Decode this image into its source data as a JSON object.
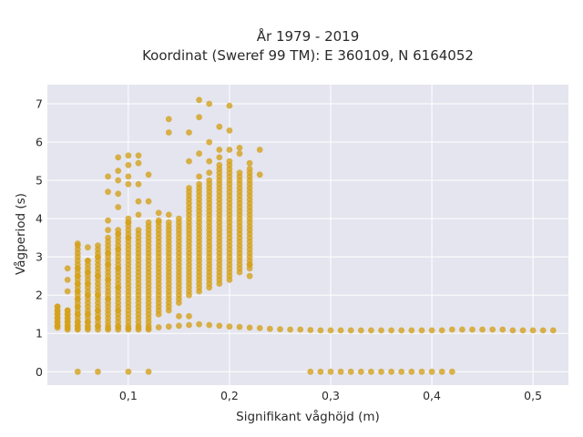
{
  "chart_data": {
    "type": "scatter",
    "title_line1": "År 1979 - 2019",
    "title_line2": "Koordinat (Sweref 99 TM): E 360109, N 6164052",
    "xlabel": "Signifikant våghöjd (m)",
    "ylabel": "Vågperiod (s)",
    "xlim": [
      0.02,
      0.535
    ],
    "ylim": [
      -0.35,
      7.5
    ],
    "x_ticks": [
      0.1,
      0.2,
      0.3,
      0.4,
      0.5
    ],
    "x_tick_labels": [
      "0,1",
      "0,2",
      "0,3",
      "0,4",
      "0,5"
    ],
    "y_ticks": [
      0,
      1,
      2,
      3,
      4,
      5,
      6,
      7
    ],
    "y_tick_labels": [
      "0",
      "1",
      "2",
      "3",
      "4",
      "5",
      "6",
      "7"
    ],
    "grid": true,
    "legend": "none",
    "colors": {
      "marker": "#D4A017",
      "background": "#E5E5EF",
      "grid": "#FFFFFF"
    },
    "columns": [
      {
        "x": 0.03,
        "lo": 1.2,
        "hi": 1.7
      },
      {
        "x": 0.04,
        "lo": 1.1,
        "hi": 1.6
      },
      {
        "x": 0.05,
        "lo": 1.1,
        "hi": 3.3
      },
      {
        "x": 0.06,
        "lo": 1.1,
        "hi": 2.9
      },
      {
        "x": 0.07,
        "lo": 1.1,
        "hi": 3.2
      },
      {
        "x": 0.08,
        "lo": 1.1,
        "hi": 3.5
      },
      {
        "x": 0.09,
        "lo": 1.1,
        "hi": 3.7
      },
      {
        "x": 0.1,
        "lo": 1.1,
        "hi": 3.9
      },
      {
        "x": 0.11,
        "lo": 1.1,
        "hi": 3.7
      },
      {
        "x": 0.12,
        "lo": 1.1,
        "hi": 3.9
      },
      {
        "x": 0.13,
        "lo": 1.5,
        "hi": 3.9
      },
      {
        "x": 0.14,
        "lo": 1.6,
        "hi": 3.9
      },
      {
        "x": 0.15,
        "lo": 1.8,
        "hi": 4.0
      },
      {
        "x": 0.16,
        "lo": 2.0,
        "hi": 4.8
      },
      {
        "x": 0.17,
        "lo": 2.1,
        "hi": 4.8
      },
      {
        "x": 0.18,
        "lo": 2.2,
        "hi": 5.0
      },
      {
        "x": 0.19,
        "lo": 2.3,
        "hi": 5.4
      },
      {
        "x": 0.2,
        "lo": 2.4,
        "hi": 5.4
      },
      {
        "x": 0.21,
        "lo": 2.6,
        "hi": 5.1
      },
      {
        "x": 0.22,
        "lo": 2.7,
        "hi": 5.3
      }
    ],
    "points": [
      [
        0.03,
        1.2
      ],
      [
        0.03,
        1.3
      ],
      [
        0.03,
        1.4
      ],
      [
        0.03,
        1.5
      ],
      [
        0.03,
        1.6
      ],
      [
        0.03,
        1.7
      ],
      [
        0.04,
        1.2
      ],
      [
        0.04,
        1.3
      ],
      [
        0.04,
        1.4
      ],
      [
        0.04,
        1.5
      ],
      [
        0.04,
        1.6
      ],
      [
        0.04,
        2.1
      ],
      [
        0.04,
        2.4
      ],
      [
        0.04,
        2.7
      ],
      [
        0.05,
        1.2
      ],
      [
        0.05,
        1.3
      ],
      [
        0.05,
        1.5
      ],
      [
        0.05,
        1.7
      ],
      [
        0.05,
        1.9
      ],
      [
        0.05,
        2.1
      ],
      [
        0.05,
        2.3
      ],
      [
        0.05,
        2.5
      ],
      [
        0.05,
        2.7
      ],
      [
        0.05,
        3.35
      ],
      [
        0.06,
        1.3
      ],
      [
        0.06,
        1.5
      ],
      [
        0.06,
        2.0
      ],
      [
        0.06,
        2.3
      ],
      [
        0.06,
        2.6
      ],
      [
        0.06,
        2.9
      ],
      [
        0.06,
        3.25
      ],
      [
        0.07,
        1.4
      ],
      [
        0.07,
        1.6
      ],
      [
        0.07,
        2.0
      ],
      [
        0.07,
        2.5
      ],
      [
        0.07,
        3.0
      ],
      [
        0.07,
        3.3
      ],
      [
        0.08,
        1.9
      ],
      [
        0.08,
        2.4
      ],
      [
        0.08,
        2.8
      ],
      [
        0.08,
        3.1
      ],
      [
        0.08,
        3.7
      ],
      [
        0.08,
        3.95
      ],
      [
        0.08,
        4.7
      ],
      [
        0.08,
        5.1
      ],
      [
        0.09,
        1.6
      ],
      [
        0.09,
        2.2
      ],
      [
        0.09,
        2.7
      ],
      [
        0.09,
        3.2
      ],
      [
        0.09,
        3.6
      ],
      [
        0.09,
        4.3
      ],
      [
        0.09,
        4.65
      ],
      [
        0.09,
        5.0
      ],
      [
        0.09,
        5.25
      ],
      [
        0.09,
        5.6
      ],
      [
        0.1,
        3.5
      ],
      [
        0.1,
        3.9
      ],
      [
        0.1,
        4.0
      ],
      [
        0.1,
        4.9
      ],
      [
        0.1,
        5.1
      ],
      [
        0.1,
        5.4
      ],
      [
        0.1,
        5.65
      ],
      [
        0.11,
        4.1
      ],
      [
        0.11,
        4.45
      ],
      [
        0.11,
        4.9
      ],
      [
        0.11,
        5.45
      ],
      [
        0.11,
        5.65
      ],
      [
        0.12,
        4.45
      ],
      [
        0.12,
        5.15
      ],
      [
        0.13,
        3.95
      ],
      [
        0.13,
        4.15
      ],
      [
        0.14,
        4.1
      ],
      [
        0.14,
        6.25
      ],
      [
        0.14,
        6.6
      ],
      [
        0.15,
        1.45
      ],
      [
        0.16,
        1.45
      ],
      [
        0.16,
        5.5
      ],
      [
        0.16,
        6.25
      ],
      [
        0.17,
        4.9
      ],
      [
        0.17,
        5.1
      ],
      [
        0.17,
        5.7
      ],
      [
        0.17,
        6.65
      ],
      [
        0.17,
        7.1
      ],
      [
        0.18,
        5.2
      ],
      [
        0.18,
        5.5
      ],
      [
        0.18,
        6.0
      ],
      [
        0.18,
        7.0
      ],
      [
        0.19,
        5.6
      ],
      [
        0.19,
        5.8
      ],
      [
        0.19,
        6.4
      ],
      [
        0.2,
        5.5
      ],
      [
        0.2,
        5.8
      ],
      [
        0.2,
        6.3
      ],
      [
        0.2,
        6.95
      ],
      [
        0.21,
        5.2
      ],
      [
        0.21,
        5.7
      ],
      [
        0.21,
        5.85
      ],
      [
        0.22,
        2.5
      ],
      [
        0.22,
        2.8
      ],
      [
        0.22,
        5.45
      ],
      [
        0.23,
        5.15
      ],
      [
        0.23,
        5.8
      ],
      [
        0.05,
        0
      ],
      [
        0.07,
        0
      ],
      [
        0.1,
        0
      ],
      [
        0.12,
        0
      ],
      [
        0.28,
        0
      ],
      [
        0.29,
        0
      ],
      [
        0.3,
        0
      ],
      [
        0.31,
        0
      ],
      [
        0.32,
        0
      ],
      [
        0.33,
        0
      ],
      [
        0.34,
        0
      ],
      [
        0.35,
        0
      ],
      [
        0.36,
        0
      ],
      [
        0.37,
        0
      ],
      [
        0.38,
        0
      ],
      [
        0.39,
        0
      ],
      [
        0.4,
        0
      ],
      [
        0.41,
        0
      ],
      [
        0.42,
        0
      ]
    ],
    "band_lower": [
      [
        0.03,
        1.15
      ],
      [
        0.04,
        1.14
      ],
      [
        0.05,
        1.13
      ],
      [
        0.06,
        1.15
      ],
      [
        0.07,
        1.18
      ],
      [
        0.08,
        1.14
      ],
      [
        0.09,
        1.16
      ],
      [
        0.1,
        1.14
      ],
      [
        0.11,
        1.15
      ],
      [
        0.12,
        1.14
      ],
      [
        0.13,
        1.16
      ],
      [
        0.14,
        1.18
      ],
      [
        0.15,
        1.2
      ],
      [
        0.16,
        1.22
      ],
      [
        0.17,
        1.24
      ],
      [
        0.18,
        1.22
      ],
      [
        0.19,
        1.2
      ],
      [
        0.2,
        1.18
      ],
      [
        0.21,
        1.17
      ],
      [
        0.22,
        1.15
      ],
      [
        0.23,
        1.14
      ],
      [
        0.24,
        1.12
      ],
      [
        0.25,
        1.11
      ],
      [
        0.26,
        1.1
      ],
      [
        0.27,
        1.1
      ],
      [
        0.28,
        1.09
      ],
      [
        0.29,
        1.08
      ],
      [
        0.3,
        1.08
      ],
      [
        0.31,
        1.08
      ],
      [
        0.32,
        1.08
      ],
      [
        0.33,
        1.08
      ],
      [
        0.34,
        1.08
      ],
      [
        0.35,
        1.08
      ],
      [
        0.36,
        1.08
      ],
      [
        0.37,
        1.08
      ],
      [
        0.38,
        1.08
      ],
      [
        0.39,
        1.08
      ],
      [
        0.4,
        1.08
      ],
      [
        0.41,
        1.08
      ],
      [
        0.42,
        1.1
      ],
      [
        0.43,
        1.1
      ],
      [
        0.44,
        1.1
      ],
      [
        0.45,
        1.1
      ],
      [
        0.46,
        1.1
      ],
      [
        0.47,
        1.1
      ],
      [
        0.48,
        1.08
      ],
      [
        0.49,
        1.08
      ],
      [
        0.5,
        1.08
      ],
      [
        0.51,
        1.08
      ],
      [
        0.52,
        1.08
      ]
    ]
  }
}
